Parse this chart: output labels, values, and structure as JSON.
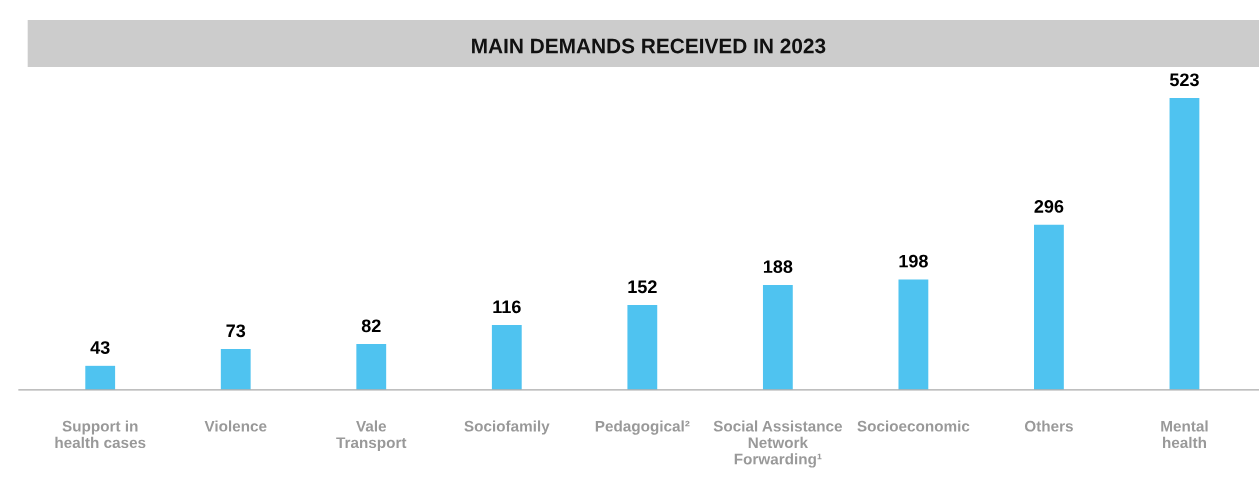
{
  "chart_data": {
    "type": "bar",
    "title": "MAIN DEMANDS RECEIVED IN 2023",
    "categories": [
      "Support in\nhealth cases",
      "Violence",
      "Vale\nTransport",
      "Sociofamily",
      "Pedagogical²",
      "Social Assistance\nNetwork\nForwarding¹",
      "Socioeconomic",
      "Others",
      "Mental\nhealth"
    ],
    "values": [
      43,
      73,
      82,
      116,
      152,
      188,
      198,
      296,
      523
    ],
    "color": "#4fc3f0",
    "data_labels": true,
    "grid": false,
    "legend": false
  }
}
